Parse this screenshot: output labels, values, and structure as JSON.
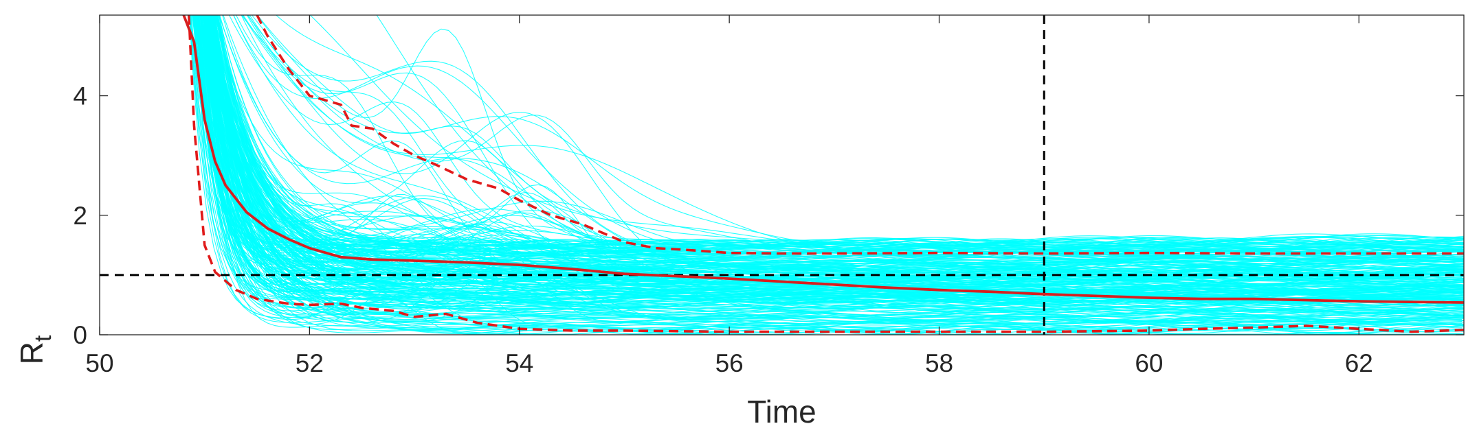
{
  "chart_data": {
    "type": "line",
    "title": "",
    "xlabel": "Time",
    "ylabel": "R",
    "ylabel_subscript": "t",
    "xlim": [
      50,
      63
    ],
    "ylim": [
      0,
      5.35
    ],
    "xticks": [
      50,
      52,
      54,
      56,
      58,
      60,
      62
    ],
    "yticks": [
      0,
      2,
      4
    ],
    "xtick_labels": [
      "50",
      "52",
      "54",
      "56",
      "58",
      "60",
      "62"
    ],
    "ytick_labels": [
      "0",
      "2",
      "4"
    ],
    "grid": false,
    "legend": "none",
    "colors": {
      "ensemble": "#00ffff",
      "mean": "#d62020",
      "bounds": "#e01a1a",
      "reference": "#000000",
      "axes": "#262626"
    },
    "reference_lines": {
      "horizontal_y": 1,
      "vertical_x": 59
    },
    "ensemble": {
      "count": 300,
      "start_time_range": [
        50.8,
        51.0
      ],
      "initial_value": 5.35,
      "plateau_range": [
        0.02,
        1.55
      ],
      "outlier_fraction": 0.08
    },
    "series": [
      {
        "style": "solid",
        "x": [
          50.8,
          50.9,
          51.0,
          51.1,
          51.2,
          51.4,
          51.6,
          51.8,
          52.0,
          52.3,
          52.6,
          53.0,
          53.5,
          54.0,
          54.5,
          55.0,
          55.5,
          56.0,
          56.5,
          57.0,
          57.5,
          58.0,
          58.5,
          59.0,
          59.5,
          60.0,
          60.5,
          61.0,
          61.5,
          62.0,
          62.5,
          63.0
        ],
        "values": [
          5.35,
          4.9,
          3.6,
          2.9,
          2.5,
          2.05,
          1.78,
          1.6,
          1.45,
          1.3,
          1.26,
          1.24,
          1.21,
          1.17,
          1.1,
          1.02,
          0.98,
          0.94,
          0.89,
          0.84,
          0.79,
          0.75,
          0.72,
          0.68,
          0.65,
          0.62,
          0.6,
          0.6,
          0.58,
          0.56,
          0.55,
          0.54
        ]
      },
      {
        "style": "dashed",
        "x": [
          51.5,
          51.6,
          51.8,
          52.0,
          52.1,
          52.3,
          52.4,
          52.6,
          52.8,
          53.0,
          53.2,
          53.5,
          53.8,
          54.0,
          54.3,
          54.6,
          55.0,
          55.3,
          55.6,
          56.0,
          56.5,
          57.0,
          58.0,
          59.0,
          60.0,
          61.0,
          62.0,
          63.0
        ],
        "values": [
          5.35,
          5.0,
          4.45,
          4.0,
          3.95,
          3.85,
          3.5,
          3.45,
          3.2,
          3.0,
          2.85,
          2.6,
          2.45,
          2.25,
          2.0,
          1.85,
          1.55,
          1.45,
          1.42,
          1.37,
          1.36,
          1.36,
          1.37,
          1.36,
          1.37,
          1.36,
          1.36,
          1.36
        ]
      },
      {
        "style": "dashed",
        "x": [
          50.85,
          50.9,
          51.0,
          51.1,
          51.3,
          51.5,
          51.8,
          52.0,
          52.3,
          52.5,
          52.8,
          53.0,
          53.3,
          53.6,
          54.0,
          54.5,
          55.0,
          56.0,
          57.0,
          58.0,
          59.0,
          60.0,
          60.5,
          61.0,
          61.5,
          62.0,
          62.5,
          63.0
        ],
        "values": [
          5.35,
          3.5,
          1.5,
          1.05,
          0.75,
          0.6,
          0.52,
          0.5,
          0.52,
          0.45,
          0.4,
          0.3,
          0.35,
          0.2,
          0.1,
          0.07,
          0.07,
          0.05,
          0.05,
          0.05,
          0.05,
          0.07,
          0.1,
          0.12,
          0.15,
          0.1,
          0.05,
          0.08
        ]
      }
    ]
  }
}
